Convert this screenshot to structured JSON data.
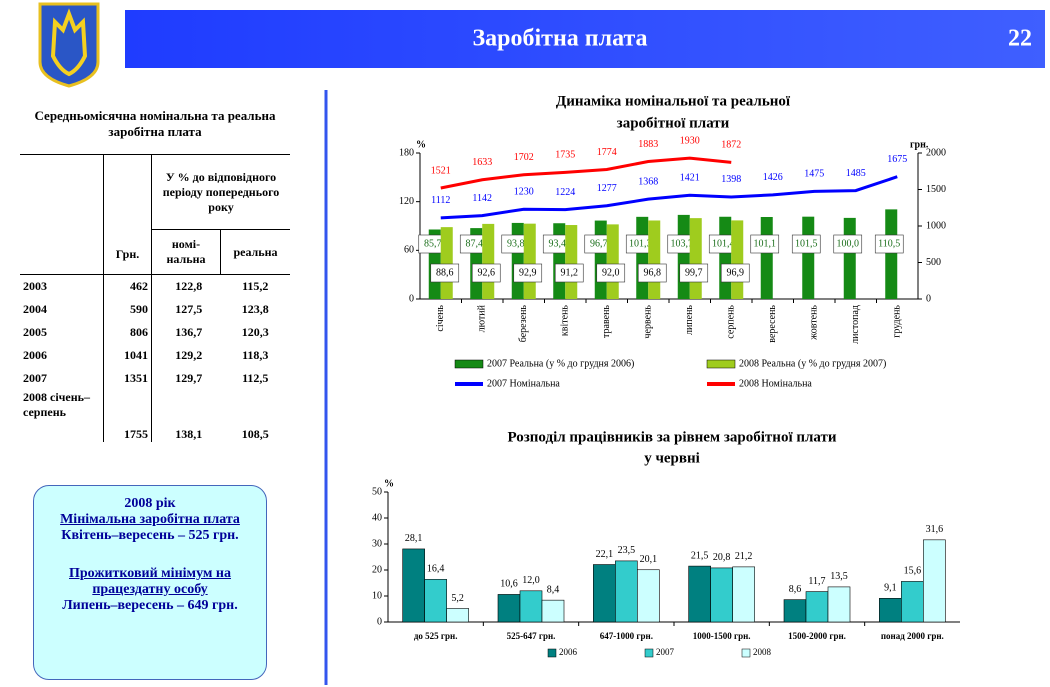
{
  "header": {
    "title": "Заробітна плата",
    "page": "22"
  },
  "table": {
    "title": "Середньомісячна номінальна та реальна  заробітна плата",
    "columns": [
      "Грн.",
      "У % до відповідного періоду попереднього року",
      "номі-нальна",
      "реальна"
    ],
    "rows": [
      [
        "2003",
        "462",
        "122,8",
        "115,2"
      ],
      [
        "2004",
        "590",
        "127,5",
        "123,8"
      ],
      [
        "2005",
        "806",
        "136,7",
        "120,3"
      ],
      [
        "2006",
        "1041",
        "129,2",
        "118,3"
      ],
      [
        "2007",
        "1351",
        "129,7",
        "112,5"
      ],
      [
        "2008 січень–серпень",
        "1755",
        "138,1",
        "108,5"
      ]
    ]
  },
  "note": {
    "lines": [
      {
        "text": "2008 рік",
        "underline": false
      },
      {
        "text": "Мінімальна заробітна плата",
        "underline": true
      },
      {
        "text": "Квітень–вересень – 525 грн.",
        "underline": false
      },
      {
        "text": "Прожитковий мінімум на працездатну особу",
        "underline": true
      },
      {
        "text": "Липень–вересень – 649 грн.",
        "underline": false
      }
    ]
  },
  "chart_data": [
    {
      "type": "bar",
      "title": [
        "Динаміка номінальної та реальної",
        "заробітної плати"
      ],
      "y_label": "%",
      "y2_label": "грн.",
      "categories": [
        "січень",
        "лютий",
        "березень",
        "квітень",
        "травень",
        "червень",
        "липень",
        "серпень",
        "вересень",
        "жовтень",
        "листопад",
        "грудень"
      ],
      "series": [
        {
          "name": "2007 Реальна (у % до грудня 2006)",
          "color": "#158a15",
          "values": [
            85.7,
            87.4,
            93.8,
            93.4,
            96.7,
            101.3,
            103.7,
            101.4,
            101.1,
            101.5,
            100.0,
            110.5
          ],
          "value_labels": [
            "85,7",
            "87,4",
            "93,8",
            "93,4",
            "96,7",
            "101,3",
            "103,7",
            "101,4",
            "101,1",
            "101,5",
            "100,0",
            "110,5"
          ]
        },
        {
          "name": "2008 Реальна (у % до грудня 2007)",
          "color": "#9fcc1e",
          "values": [
            88.6,
            92.6,
            92.9,
            91.2,
            92.0,
            96.8,
            99.7,
            96.9,
            null,
            null,
            null,
            null
          ],
          "value_labels": [
            "88,6",
            "92,6",
            "92,9",
            "91,2",
            "92,0",
            "96,8",
            "99,7",
            "96,9",
            null,
            null,
            null,
            null
          ]
        },
        {
          "name": "2007 Номінальна",
          "type": "line",
          "axis": "y2",
          "color": "#0000ff",
          "values": [
            1112,
            1142,
            1230,
            1224,
            1277,
            1368,
            1421,
            1398,
            1426,
            1475,
            1485,
            1675
          ]
        },
        {
          "name": "2008 Номінальна",
          "type": "line",
          "axis": "y2",
          "color": "#ff0000",
          "values": [
            1521,
            1633,
            1702,
            1735,
            1774,
            1883,
            1930,
            1872,
            null,
            null,
            null,
            null
          ]
        }
      ],
      "ylim": [
        0,
        180
      ],
      "yticks": [
        0,
        60,
        120,
        180
      ],
      "y2lim": [
        0,
        2000
      ],
      "y2ticks": [
        0,
        500,
        1000,
        1500,
        2000
      ]
    },
    {
      "type": "bar",
      "title": [
        "Розподіл працівників за рівнем заробітної плати",
        "у червні"
      ],
      "y_label": "%",
      "categories": [
        "до 525 грн.",
        "525-647 грн.",
        "647-1000 грн.",
        "1000-1500 грн.",
        "1500-2000 грн.",
        "понад 2000 грн."
      ],
      "series": [
        {
          "name": "2006",
          "color": "#008080",
          "values": [
            28.1,
            10.6,
            22.1,
            21.5,
            8.6,
            9.1
          ],
          "value_labels": [
            "28,1",
            "10,6",
            "22,1",
            "21,5",
            "8,6",
            "9,1"
          ]
        },
        {
          "name": "2007",
          "color": "#33cccc",
          "values": [
            16.4,
            12.0,
            23.5,
            20.8,
            11.7,
            15.6
          ],
          "value_labels": [
            "16,4",
            "12,0",
            "23,5",
            "20,8",
            "11,7",
            "15,6"
          ]
        },
        {
          "name": "2008",
          "color": "#ccffff",
          "values": [
            5.2,
            8.4,
            20.1,
            21.2,
            13.5,
            31.6
          ],
          "value_labels": [
            "5,2",
            "8,4",
            "20,1",
            "21,2",
            "13,5",
            "31,6"
          ]
        }
      ],
      "ylim": [
        0,
        50
      ],
      "yticks": [
        0,
        10,
        20,
        30,
        40,
        50
      ]
    }
  ]
}
